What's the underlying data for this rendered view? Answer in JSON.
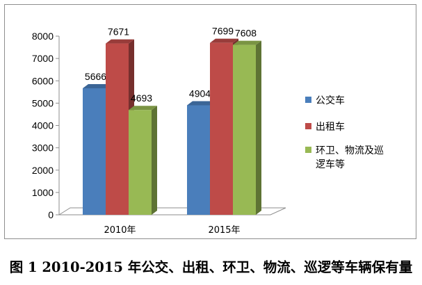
{
  "chart_data": {
    "type": "bar",
    "categories": [
      "2010年",
      "2015年"
    ],
    "series": [
      {
        "name": "公交车",
        "values": [
          5666,
          4904
        ],
        "color": "#4a7ebb"
      },
      {
        "name": "出租车",
        "values": [
          7671,
          7699
        ],
        "color": "#be4b48"
      },
      {
        "name": "环卫、物流及巡逻车等",
        "values": [
          4693,
          7608
        ],
        "color": "#98b954"
      }
    ],
    "yticks": [
      0,
      1000,
      2000,
      3000,
      4000,
      5000,
      6000,
      7000,
      8000
    ],
    "ylim": [
      0,
      8000
    ],
    "grid": false,
    "legend_position": "right",
    "three_d": true
  },
  "caption": "图 1 2010-2015 年公交、出租、环卫、物流、巡逻等车辆保有量"
}
